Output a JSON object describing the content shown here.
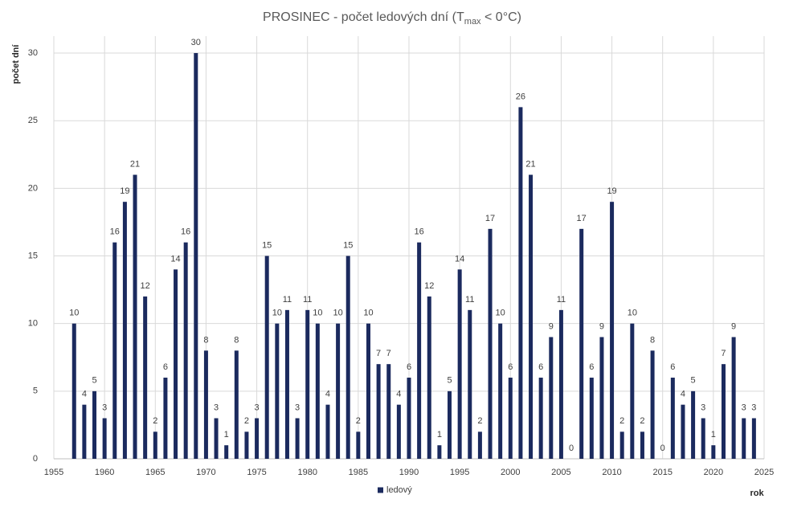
{
  "chart_data": {
    "type": "bar",
    "title": "PROSINEC - počet ledových dní (T",
    "title_subscript": "max",
    "title_end": " < 0°C)",
    "y_label": "počet dní",
    "x_label": "rok",
    "x": [
      1957,
      1958,
      1959,
      1960,
      1961,
      1962,
      1963,
      1964,
      1965,
      1966,
      1967,
      1968,
      1969,
      1970,
      1971,
      1972,
      1973,
      1974,
      1975,
      1976,
      1977,
      1978,
      1979,
      1980,
      1981,
      1982,
      1983,
      1984,
      1985,
      1986,
      1987,
      1988,
      1989,
      1990,
      1991,
      1992,
      1993,
      1994,
      1995,
      1996,
      1997,
      1998,
      1999,
      2000,
      2001,
      2002,
      2003,
      2004,
      2005,
      2006,
      2007,
      2008,
      2009,
      2010,
      2011,
      2012,
      2013,
      2014,
      2015,
      2016,
      2017,
      2018,
      2019,
      2020,
      2021,
      2022,
      2023,
      2024
    ],
    "series": [
      {
        "name": "ledový",
        "color": "#1b2a5e",
        "values": [
          10,
          4,
          5,
          3,
          16,
          19,
          21,
          12,
          2,
          6,
          14,
          16,
          30,
          8,
          3,
          1,
          8,
          2,
          3,
          15,
          10,
          11,
          3,
          11,
          10,
          4,
          10,
          15,
          2,
          10,
          7,
          7,
          4,
          6,
          16,
          12,
          1,
          5,
          14,
          11,
          2,
          17,
          10,
          6,
          26,
          21,
          6,
          9,
          11,
          0,
          17,
          6,
          9,
          19,
          2,
          10,
          2,
          8,
          0,
          6,
          4,
          5,
          3,
          1,
          7,
          9,
          3,
          3
        ]
      }
    ],
    "xlim": [
      1955,
      2025
    ],
    "xticks": [
      1955,
      1960,
      1965,
      1970,
      1975,
      1980,
      1985,
      1990,
      1995,
      2000,
      2005,
      2010,
      2015,
      2020,
      2025
    ],
    "ylim": [
      0,
      31.25
    ],
    "yticks": [
      0,
      5,
      10,
      15,
      20,
      25,
      30
    ],
    "grid": true,
    "legend": "bottom"
  }
}
